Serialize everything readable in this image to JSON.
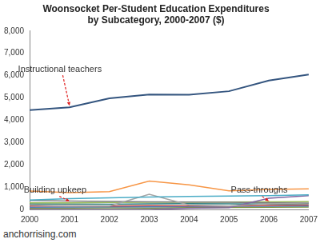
{
  "chart_data": {
    "type": "line",
    "title": [
      "Woonsocket Per-Student Education Expenditures",
      "by Subcategory, 2000-2007 ($)"
    ],
    "source": "anchorrising.com",
    "categories": [
      "2000",
      "2001",
      "2002",
      "2003",
      "2004",
      "2005",
      "2006",
      "2007"
    ],
    "series": [
      {
        "color": "#34557f",
        "values": [
          4450,
          4580,
          4980,
          5150,
          5140,
          5300,
          5780,
          6050
        ]
      },
      {
        "color": "#f79646",
        "values": [
          820,
          750,
          800,
          1270,
          1100,
          830,
          900,
          920
        ]
      },
      {
        "color": "#4bacc6",
        "values": [
          420,
          480,
          520,
          560,
          580,
          600,
          620,
          650
        ]
      },
      {
        "color": "#a5a5a5",
        "values": [
          200,
          150,
          150,
          680,
          200,
          150,
          250,
          300
        ]
      },
      {
        "color": "#8064a2",
        "values": [
          0,
          0,
          0,
          0,
          50,
          80,
          500,
          620
        ]
      },
      {
        "color": "#7f7f7f",
        "values": [
          400,
          380,
          360,
          340,
          330,
          320,
          300,
          300
        ]
      },
      {
        "color": "#9bbb59",
        "values": [
          300,
          300,
          310,
          320,
          320,
          330,
          340,
          350
        ]
      },
      {
        "color": "#c0504d",
        "values": [
          150,
          160,
          150,
          170,
          160,
          150,
          180,
          200
        ]
      },
      {
        "color": "#4f81bd",
        "values": [
          100,
          110,
          120,
          120,
          130,
          140,
          140,
          150
        ]
      },
      {
        "color": "#2c7c7c",
        "values": [
          250,
          240,
          230,
          250,
          260,
          250,
          240,
          260
        ]
      },
      {
        "color": "#76923c",
        "values": [
          50,
          60,
          70,
          60,
          80,
          90,
          100,
          110
        ]
      }
    ],
    "annotations": [
      {
        "text": "Instructional teachers",
        "x": "2001",
        "y": 4580
      },
      {
        "text": "Building upkeep",
        "x": "2001",
        "y": 300
      },
      {
        "text": "Pass-throughs",
        "x": "2006",
        "y": 300
      }
    ],
    "ylim": [
      0,
      8000
    ],
    "yticks": [
      0,
      {
        "value": 1000,
        "label": "1,000"
      },
      {
        "value": 2000,
        "label": "2,000"
      },
      {
        "value": 3000,
        "label": "3,000"
      },
      {
        "value": 4000,
        "label": "4,000"
      },
      {
        "value": 5000,
        "label": "5,000"
      },
      {
        "value": 6000,
        "label": "6,000"
      },
      {
        "value": 7000,
        "label": "7,000"
      },
      {
        "value": 8000,
        "label": "8,000"
      }
    ],
    "grid": false
  }
}
